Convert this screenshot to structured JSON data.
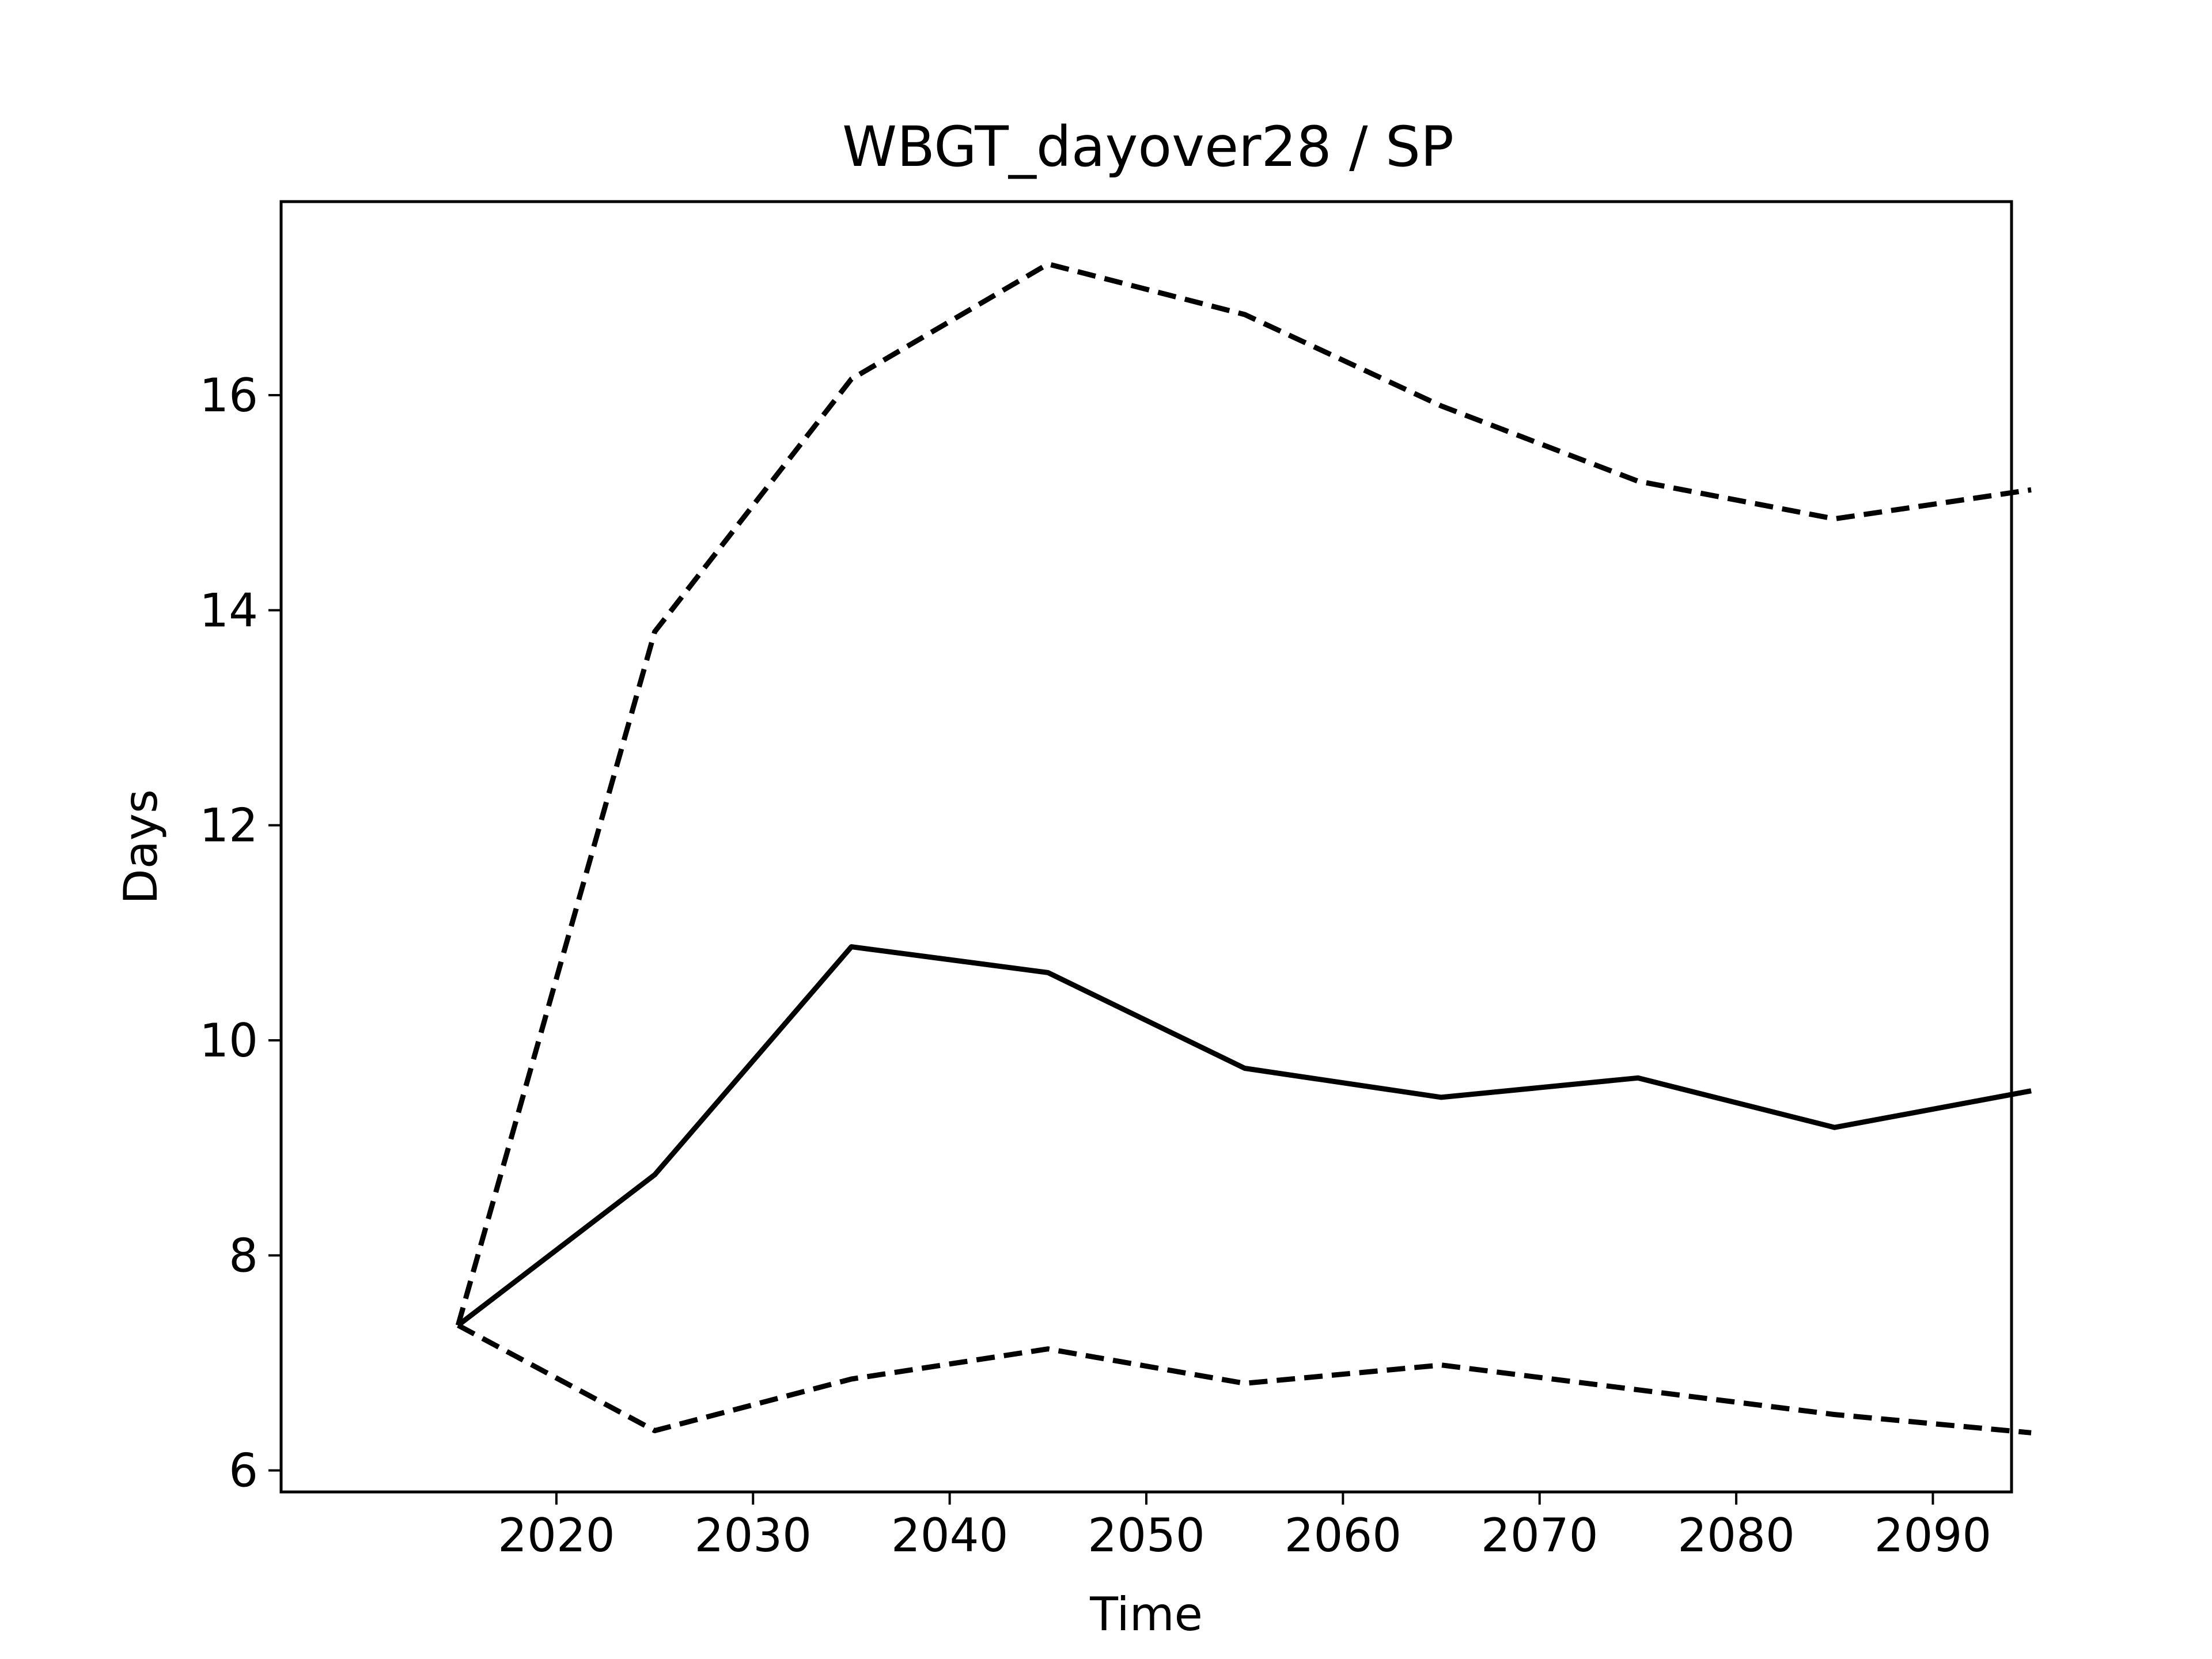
{
  "chart_data": {
    "type": "line",
    "title": "WBGT_dayover28 / SP",
    "xlabel": "Time",
    "ylabel": "Days",
    "x": [
      2015,
      2025,
      2035,
      2045,
      2055,
      2065,
      2075,
      2085,
      2095
    ],
    "xlim": [
      2006,
      2094
    ],
    "ylim": [
      5.8,
      17.8
    ],
    "xticks": [
      2020,
      2030,
      2040,
      2050,
      2060,
      2070,
      2080,
      2090
    ],
    "yticks": [
      6,
      8,
      10,
      12,
      14,
      16
    ],
    "grid": false,
    "series": [
      {
        "style": "dashed",
        "color": "#000000",
        "values": [
          7.35,
          13.8,
          16.15,
          17.22,
          16.75,
          15.9,
          15.2,
          14.85,
          15.12
        ]
      },
      {
        "style": "solid",
        "color": "#000000",
        "values": [
          7.35,
          8.75,
          10.87,
          10.63,
          9.74,
          9.47,
          9.65,
          9.19,
          9.53
        ]
      },
      {
        "style": "dashed",
        "color": "#000000",
        "values": [
          7.35,
          6.37,
          6.85,
          7.13,
          6.81,
          6.98,
          6.75,
          6.52,
          6.35
        ]
      }
    ]
  }
}
